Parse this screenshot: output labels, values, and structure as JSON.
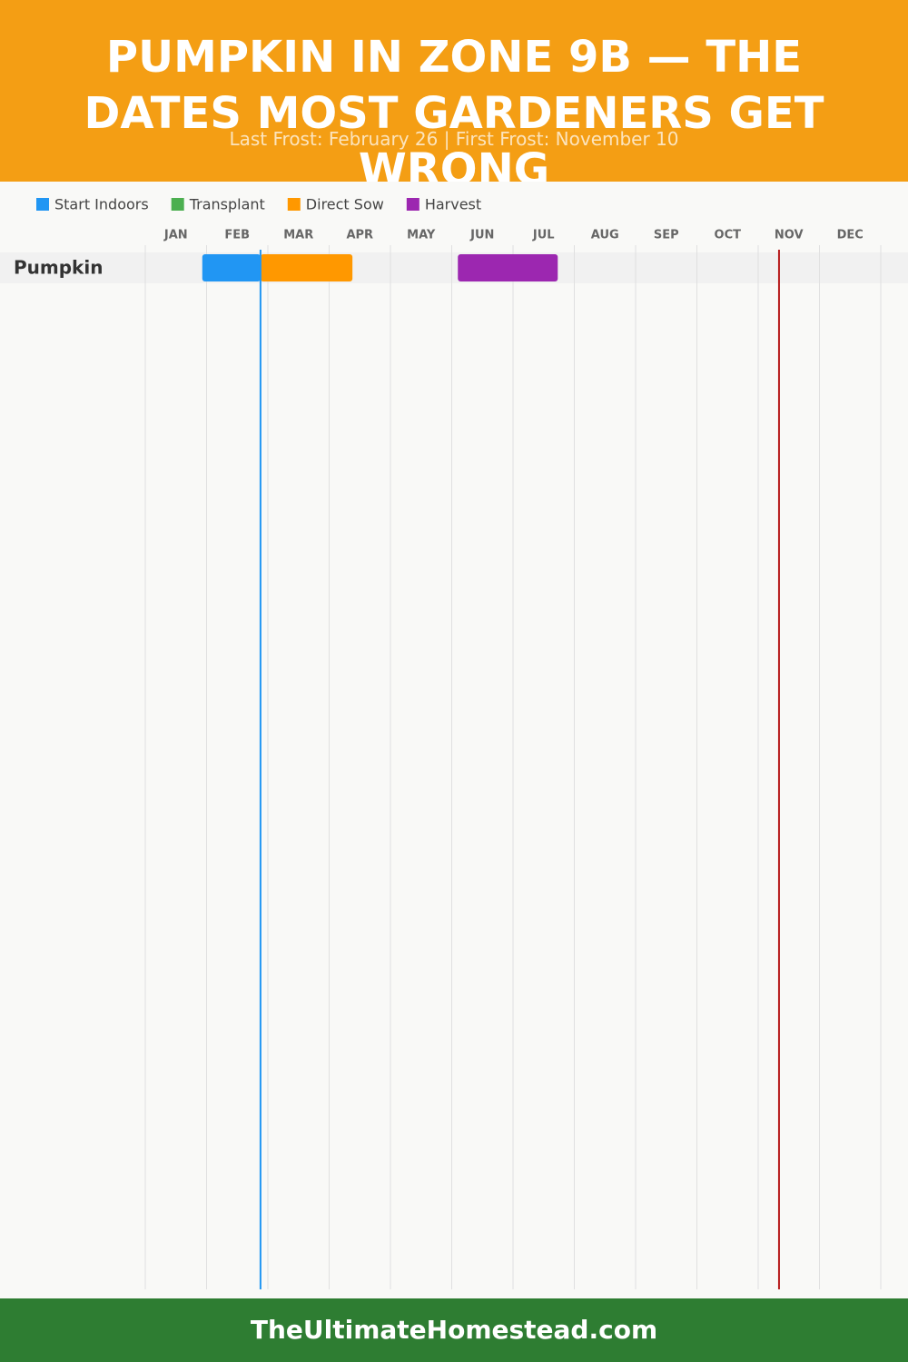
{
  "header": {
    "title": "PUMPKIN IN ZONE 9B — THE DATES MOST GARDENERS GET WRONG",
    "subtitle": "Last Frost: February 26 | First Frost: November 10"
  },
  "chart_data": {
    "type": "gantt",
    "categories": [
      "Pumpkin"
    ],
    "months": [
      "JAN",
      "FEB",
      "MAR",
      "APR",
      "MAY",
      "JUN",
      "JUL",
      "AUG",
      "SEP",
      "OCT",
      "NOV",
      "DEC"
    ],
    "xlim": [
      0,
      12
    ],
    "series": [
      {
        "name": "Start Indoors",
        "color": "#2196f3",
        "values": [
          [
            0.93,
            1.88
          ]
        ]
      },
      {
        "name": "Transplant",
        "color": "#4caf50",
        "values": [
          null
        ]
      },
      {
        "name": "Direct Sow",
        "color": "#ff9800",
        "values": [
          [
            1.88,
            3.38
          ]
        ]
      },
      {
        "name": "Harvest",
        "color": "#9c27b0",
        "values": [
          [
            5.1,
            6.73
          ]
        ]
      }
    ],
    "markers": [
      {
        "value": 1.88,
        "color": "#2196f3"
      },
      {
        "value": 10.34,
        "color": "#b71c1c"
      }
    ],
    "grid": true
  },
  "footer": {
    "text": "TheUltimateHomestead.com"
  }
}
